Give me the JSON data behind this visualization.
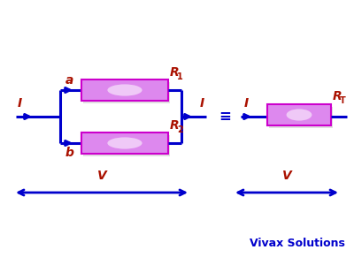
{
  "bg_color": "#ffffff",
  "circuit_color": "#0000cc",
  "label_color": "#aa1100",
  "resistor_face": "#dd88ee",
  "resistor_edge": "#cc00cc",
  "vivax_color": "#0000cc",
  "lw": 2.2,
  "title_text": "Vivax Solutions",
  "labels": {
    "I_left": "I",
    "I_right": "I",
    "I_equiv": "I",
    "a": "a",
    "b": "b",
    "R1": "R",
    "R1_sub": "1",
    "R2": "R",
    "R2_sub": "2",
    "RT": "R",
    "RT_sub": "T",
    "V_left": "V",
    "V_right": "V",
    "equiv": "≡"
  }
}
